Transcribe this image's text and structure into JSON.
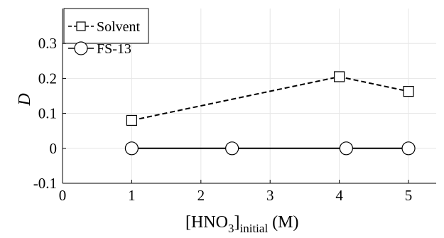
{
  "chart_data": {
    "type": "line",
    "xlabel": {
      "main": "[HNO",
      "sub1": "3",
      "sub2": "initial",
      "tail": " (M)"
    },
    "ylabel": "D",
    "xlim": [
      0,
      5.4
    ],
    "ylim": [
      -0.1,
      0.4
    ],
    "xticks": [
      0,
      1,
      2,
      3,
      4,
      5
    ],
    "yticks": [
      -0.1,
      0,
      0.1,
      0.2,
      0.3
    ],
    "xtick_labels": [
      "0",
      "1",
      "2",
      "3",
      "4",
      "5"
    ],
    "ytick_labels": [
      "-0.1",
      "0",
      "0.1",
      "0.2",
      "0.3"
    ],
    "grid": true,
    "legend": "top-left",
    "series": [
      {
        "name": "Solvent",
        "marker": "square",
        "line": "dashed",
        "color": "#000000",
        "x": [
          1,
          4,
          5
        ],
        "y": [
          0.08,
          0.205,
          0.163
        ]
      },
      {
        "name": "FS-13",
        "marker": "circle",
        "line": "solid",
        "color": "#000000",
        "x": [
          1,
          2.45,
          4.1,
          5
        ],
        "y": [
          0,
          0,
          0,
          0
        ]
      }
    ]
  }
}
